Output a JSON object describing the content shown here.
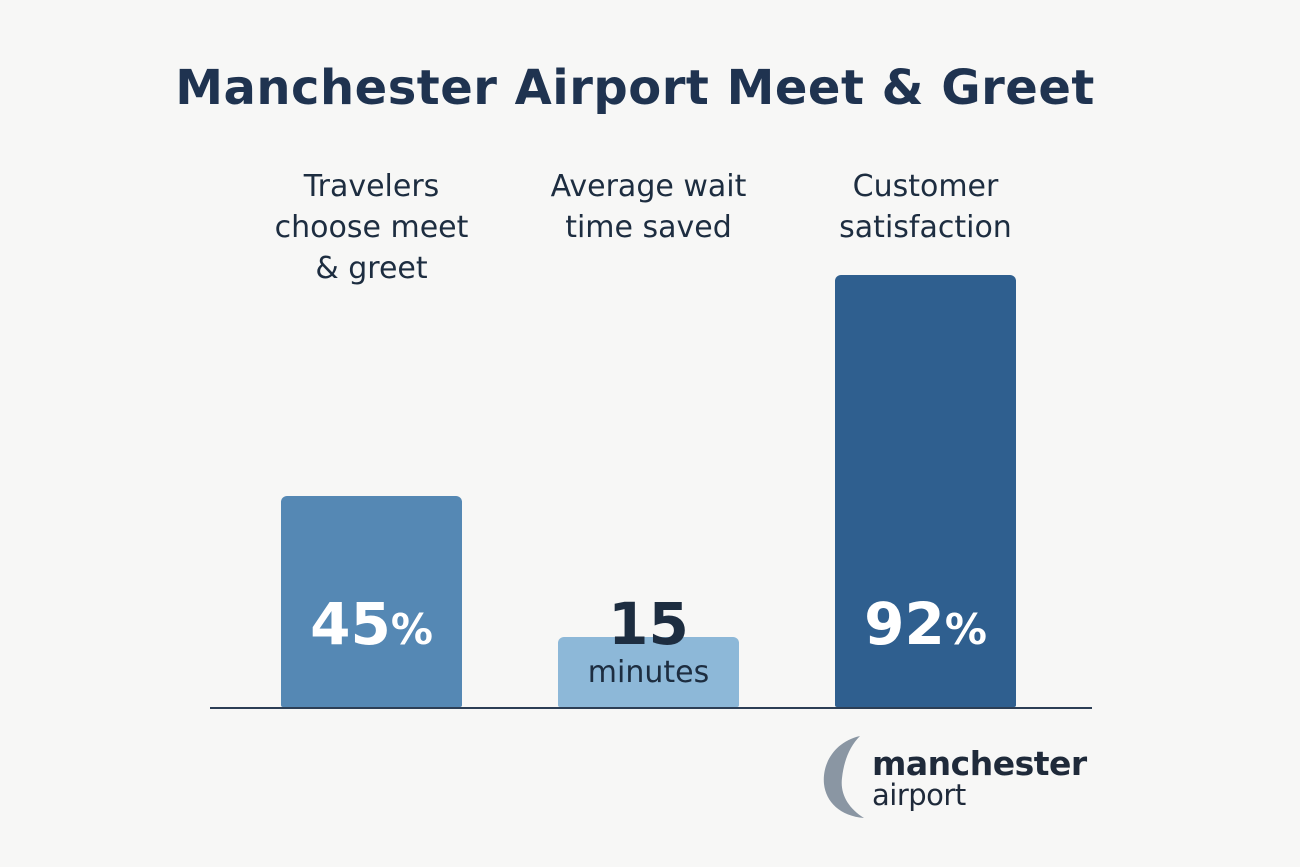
{
  "chart_data": {
    "type": "bar",
    "title": "Manchester Airport Meet & Greet",
    "categories": [
      "Travelers choose meet & greet",
      "Average wait time saved",
      "Customer satisfaction"
    ],
    "category_lines": [
      [
        "Travelers",
        "choose meet",
        "& greet"
      ],
      [
        "Average wait",
        "time saved"
      ],
      [
        "Customer",
        "satisfaction"
      ]
    ],
    "values": [
      45,
      15,
      92
    ],
    "bar_display": [
      {
        "number": "45",
        "suffix": "%",
        "unit": ""
      },
      {
        "number": "15",
        "suffix": "",
        "unit": "minutes"
      },
      {
        "number": "92",
        "suffix": "%",
        "unit": ""
      }
    ],
    "colors": [
      "#5588b4",
      "#8db8d8",
      "#2f5f8f"
    ],
    "value_text_colors": [
      "#ffffff",
      "#1d2d40",
      "#ffffff"
    ],
    "xlabel": "",
    "ylabel": "",
    "grid": false,
    "legend": "none"
  },
  "logo": {
    "line1": "manchester",
    "line2": "airport"
  }
}
